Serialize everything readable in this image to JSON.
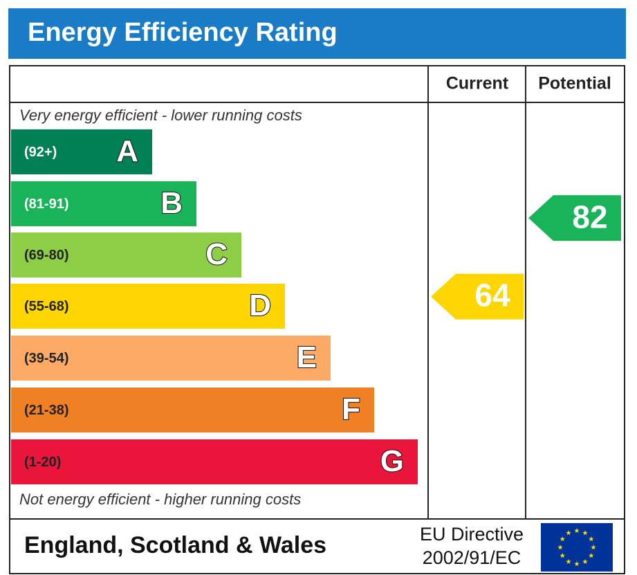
{
  "title": "Energy Efficiency Rating",
  "headers": {
    "current": "Current",
    "potential": "Potential"
  },
  "top_note": "Very energy efficient - lower running costs",
  "bottom_note": "Not energy efficient - higher running costs",
  "bands": [
    {
      "range": "(92+)",
      "letter": "A",
      "color": "#008054",
      "label_color": "#ffffff"
    },
    {
      "range": "(81-91)",
      "letter": "B",
      "color": "#19b459",
      "label_color": "#ffffff"
    },
    {
      "range": "(69-80)",
      "letter": "C",
      "color": "#8dce46",
      "label_color": "#222222"
    },
    {
      "range": "(55-68)",
      "letter": "D",
      "color": "#ffd500",
      "label_color": "#222222"
    },
    {
      "range": "(39-54)",
      "letter": "E",
      "color": "#fcaa65",
      "label_color": "#222222"
    },
    {
      "range": "(21-38)",
      "letter": "F",
      "color": "#ef8023",
      "label_color": "#222222"
    },
    {
      "range": "(1-20)",
      "letter": "G",
      "color": "#e9153b",
      "label_color": "#222222"
    }
  ],
  "current": {
    "value": 64,
    "color": "#ffd500"
  },
  "potential": {
    "value": 82,
    "color": "#19b459"
  },
  "footer": {
    "region": "England, Scotland & Wales",
    "directive": [
      "EU Directive",
      "2002/91/EC"
    ]
  }
}
